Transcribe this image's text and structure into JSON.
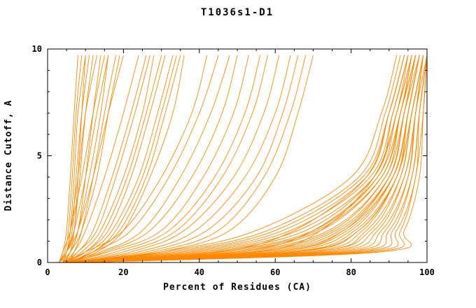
{
  "chart_data": {
    "type": "line",
    "title": "T1036s1-D1",
    "xlabel": "Percent of Residues (CA)",
    "ylabel": "Distance Cutoff, A",
    "x_axis": {
      "min": 0,
      "max": 100,
      "major_ticks": [
        0,
        20,
        40,
        60,
        80,
        100
      ],
      "minor_step": 5
    },
    "y_axis": {
      "min": 0,
      "max": 10,
      "major_ticks": [
        0,
        5,
        10
      ],
      "minor_step": 1
    },
    "line_color": "#FF8800",
    "axis_color": "#000000",
    "background": "#FFFFFF",
    "legend": "none",
    "grid": "off",
    "y_anchors": [
      0,
      0.5,
      1.5,
      4,
      7,
      9.7
    ],
    "series": [
      {
        "x": [
          3,
          4,
          5,
          6,
          7,
          8
        ]
      },
      {
        "x": [
          3,
          4.5,
          5.5,
          6.5,
          7.5,
          9
        ]
      },
      {
        "x": [
          3,
          5,
          6,
          7,
          8,
          10
        ]
      },
      {
        "x": [
          4,
          5,
          6.5,
          7.5,
          9,
          11
        ]
      },
      {
        "x": [
          3,
          5,
          7,
          8,
          9,
          10
        ]
      },
      {
        "x": [
          4,
          6,
          7,
          8.5,
          10,
          12
        ]
      },
      {
        "x": [
          3,
          5,
          6,
          8,
          10,
          13
        ]
      },
      {
        "x": [
          4,
          6,
          8,
          10,
          12,
          14
        ]
      },
      {
        "x": [
          3,
          4,
          6,
          9,
          12,
          15
        ]
      },
      {
        "x": [
          4,
          5,
          7,
          10,
          13,
          16
        ]
      },
      {
        "x": [
          3,
          6,
          8,
          11,
          14,
          16
        ]
      },
      {
        "x": [
          5,
          7,
          9,
          12,
          15,
          18
        ]
      },
      {
        "x": [
          4,
          6,
          9,
          13,
          16,
          19
        ]
      },
      {
        "x": [
          3,
          5,
          8,
          12,
          16,
          20
        ]
      },
      {
        "x": [
          4,
          7,
          10,
          15,
          20,
          24
        ]
      },
      {
        "x": [
          4,
          8,
          12,
          17,
          22,
          26
        ]
      },
      {
        "x": [
          5,
          8,
          13,
          18,
          23,
          27
        ]
      },
      {
        "x": [
          5,
          9,
          14,
          20,
          25,
          28
        ]
      },
      {
        "x": [
          4,
          10,
          15,
          21,
          26,
          30
        ]
      },
      {
        "x": [
          5,
          10,
          16,
          22,
          27,
          31
        ]
      },
      {
        "x": [
          6,
          11,
          17,
          24,
          29,
          33
        ]
      },
      {
        "x": [
          5,
          12,
          18,
          25,
          30,
          34
        ]
      },
      {
        "x": [
          6,
          12,
          19,
          26,
          31,
          35
        ]
      },
      {
        "x": [
          6,
          13,
          20,
          27,
          33,
          36
        ]
      },
      {
        "x": [
          4,
          10,
          20,
          30,
          38,
          42
        ]
      },
      {
        "x": [
          5,
          12,
          22,
          32,
          40,
          45
        ]
      },
      {
        "x": [
          5,
          14,
          25,
          35,
          43,
          48
        ]
      },
      {
        "x": [
          6,
          15,
          27,
          38,
          46,
          50
        ]
      },
      {
        "x": [
          5,
          16,
          30,
          41,
          49,
          53
        ]
      },
      {
        "x": [
          6,
          18,
          32,
          44,
          52,
          56
        ]
      },
      {
        "x": [
          6,
          20,
          34,
          46,
          54,
          58
        ]
      },
      {
        "x": [
          7,
          22,
          36,
          49,
          57,
          61
        ]
      },
      {
        "x": [
          6,
          24,
          39,
          52,
          60,
          64
        ]
      },
      {
        "x": [
          7,
          26,
          42,
          55,
          62,
          66
        ]
      },
      {
        "x": [
          7,
          28,
          45,
          57,
          64,
          68
        ]
      },
      {
        "x": [
          8,
          30,
          48,
          60,
          66,
          70
        ]
      },
      {
        "x": [
          4,
          30,
          55,
          80,
          88,
          92
        ]
      },
      {
        "x": [
          5,
          32,
          58,
          82,
          89,
          93
        ]
      },
      {
        "x": [
          4,
          34,
          60,
          83,
          90,
          94
        ]
      },
      {
        "x": [
          5,
          36,
          62,
          84,
          90,
          94
        ]
      },
      {
        "x": [
          6,
          38,
          64,
          85,
          91,
          95
        ]
      },
      {
        "x": [
          5,
          40,
          66,
          86,
          91,
          95
        ]
      },
      {
        "x": [
          6,
          42,
          68,
          86,
          92,
          96
        ]
      },
      {
        "x": [
          5,
          44,
          70,
          87,
          92,
          96
        ]
      },
      {
        "x": [
          6,
          46,
          71,
          88,
          93,
          96
        ]
      },
      {
        "x": [
          7,
          48,
          72,
          88,
          93,
          97
        ]
      },
      {
        "x": [
          6,
          50,
          74,
          89,
          93,
          97
        ]
      },
      {
        "x": [
          7,
          52,
          75,
          89,
          94,
          97
        ]
      },
      {
        "x": [
          6,
          54,
          76,
          90,
          94,
          97
        ]
      },
      {
        "x": [
          7,
          56,
          77,
          90,
          94,
          98
        ]
      },
      {
        "x": [
          8,
          58,
          78,
          91,
          95,
          98
        ]
      },
      {
        "x": [
          7,
          60,
          79,
          91,
          95,
          98
        ]
      },
      {
        "x": [
          8,
          62,
          80,
          91,
          95,
          98
        ]
      },
      {
        "x": [
          7,
          64,
          81,
          92,
          95,
          98
        ]
      },
      {
        "x": [
          8,
          66,
          82,
          92,
          96,
          99
        ]
      },
      {
        "x": [
          8,
          68,
          83,
          92,
          96,
          99
        ]
      },
      {
        "x": [
          9,
          70,
          84,
          93,
          96,
          99
        ]
      },
      {
        "x": [
          8,
          55,
          72,
          86,
          92,
          95
        ]
      },
      {
        "x": [
          9,
          45,
          65,
          84,
          90,
          94
        ]
      },
      {
        "x": [
          7,
          50,
          70,
          87,
          93,
          96
        ]
      },
      {
        "x": [
          9,
          60,
          78,
          90,
          94,
          97
        ]
      },
      {
        "x": [
          8,
          65,
          82,
          92,
          95,
          98
        ]
      },
      {
        "x": [
          9,
          70,
          85,
          93,
          96,
          99
        ]
      },
      {
        "x": [
          8,
          72,
          86,
          94,
          97,
          99
        ]
      },
      {
        "x": [
          9,
          74,
          87,
          94,
          97,
          99
        ]
      },
      {
        "x": [
          8,
          76,
          88,
          95,
          97,
          99
        ]
      },
      {
        "x": [
          9,
          78,
          89,
          95,
          97,
          100
        ]
      },
      {
        "x": [
          8,
          80,
          90,
          96,
          98,
          100
        ]
      },
      {
        "x": [
          9,
          82,
          91,
          96,
          98,
          100
        ]
      },
      {
        "x": [
          8,
          84,
          92,
          97,
          98,
          100
        ]
      },
      {
        "x": [
          9,
          86,
          93,
          97,
          99,
          100
        ]
      },
      {
        "x": [
          7,
          88,
          94,
          98,
          99,
          100
        ]
      }
    ]
  }
}
